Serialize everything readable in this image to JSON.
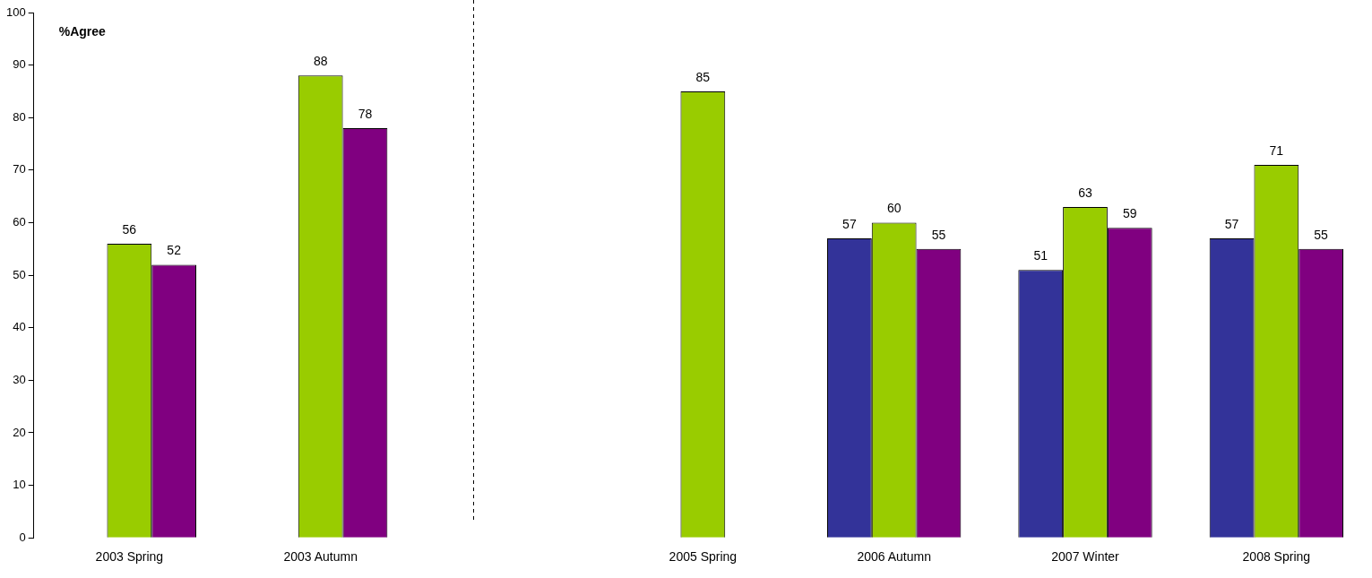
{
  "chart_data": {
    "type": "bar",
    "ylabel": "%Agree",
    "categories": [
      "2003 Spring",
      "2003 Autumn",
      null,
      "2005 Spring",
      "2006 Autumn",
      "2007 Winter",
      "2008 Spring"
    ],
    "series": [
      {
        "color": "#333399",
        "values": [
          null,
          null,
          null,
          null,
          57,
          51,
          57
        ]
      },
      {
        "color": "#99cc00",
        "values": [
          56,
          88,
          null,
          85,
          60,
          63,
          71
        ]
      },
      {
        "color": "#800080",
        "values": [
          52,
          78,
          null,
          null,
          55,
          59,
          55
        ]
      }
    ],
    "ylim": [
      0,
      100
    ],
    "yticks": [
      0,
      10,
      20,
      30,
      40,
      50,
      60,
      70,
      80,
      90,
      100
    ],
    "data_labels": true,
    "grid": false,
    "legend": false
  }
}
